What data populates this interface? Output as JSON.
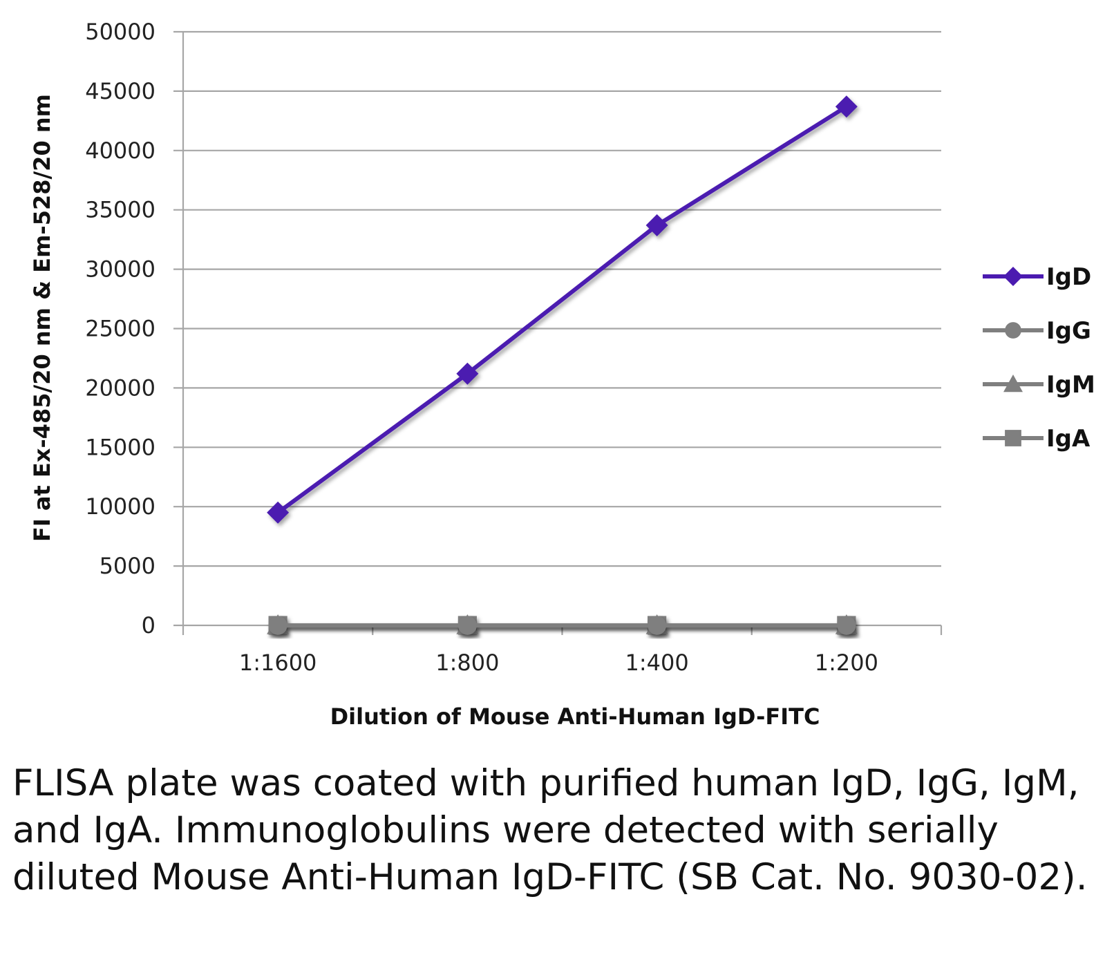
{
  "chart_data": {
    "type": "line",
    "title": "",
    "xlabel": "Dilution of Mouse Anti-Human IgD-FITC",
    "ylabel": "FI at Ex-485/20 nm & Em-528/20 nm",
    "categories": [
      "1:1600",
      "1:800",
      "1:400",
      "1:200"
    ],
    "ylim": [
      0,
      50000
    ],
    "yticks": [
      0,
      5000,
      10000,
      15000,
      20000,
      25000,
      30000,
      35000,
      40000,
      45000,
      50000
    ],
    "ytick_labels": [
      "0",
      "5000",
      "10000",
      "15000",
      "20000",
      "25000",
      "30000",
      "35000",
      "40000",
      "45000",
      "50000"
    ],
    "grid": true,
    "legend_position": "right",
    "series": [
      {
        "name": "IgD",
        "values": [
          9500,
          21200,
          33700,
          43700
        ],
        "color": "#4b1bb0",
        "marker": "diamond"
      },
      {
        "name": "IgG",
        "values": [
          0,
          0,
          0,
          0
        ],
        "color": "#7f7f7f",
        "marker": "circle"
      },
      {
        "name": "IgM",
        "values": [
          0,
          0,
          0,
          0
        ],
        "color": "#7f7f7f",
        "marker": "triangle"
      },
      {
        "name": "IgA",
        "values": [
          0,
          0,
          0,
          0
        ],
        "color": "#7f7f7f",
        "marker": "square"
      }
    ]
  },
  "caption": "FLISA plate was coated with purified human IgD, IgG, IgM, and IgA.  Immunoglobulins were detected with serially diluted Mouse Anti-Human IgD-FITC (SB Cat. No. 9030-02)."
}
